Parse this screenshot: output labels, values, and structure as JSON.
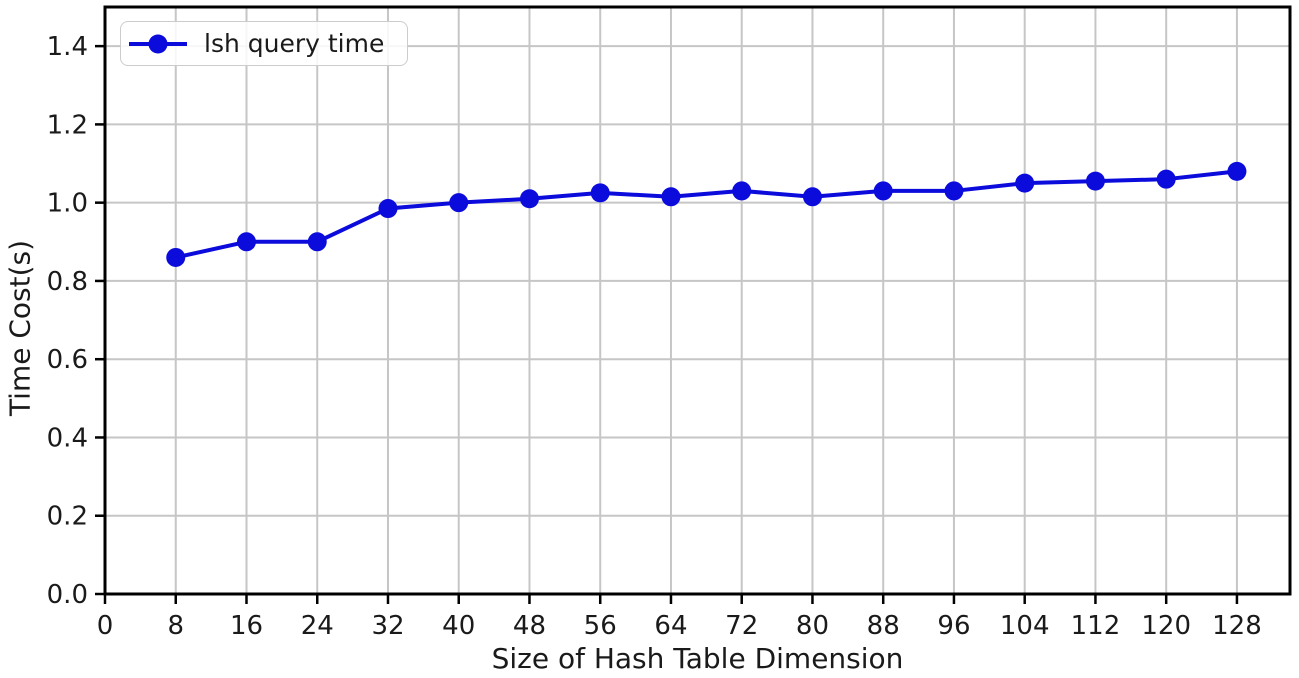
{
  "chart_data": {
    "type": "line",
    "title": "",
    "xlabel": "Size of Hash Table Dimension",
    "ylabel": "Time Cost(s)",
    "x": [
      8,
      16,
      24,
      32,
      40,
      48,
      56,
      64,
      72,
      80,
      88,
      96,
      104,
      112,
      120,
      128
    ],
    "series": [
      {
        "name": "lsh query time",
        "values": [
          0.86,
          0.9,
          0.9,
          0.985,
          1.0,
          1.01,
          1.025,
          1.015,
          1.03,
          1.015,
          1.03,
          1.03,
          1.05,
          1.055,
          1.06,
          1.08
        ],
        "color": "#0b0bdc",
        "marker": "circle"
      }
    ],
    "xlim": [
      0,
      134
    ],
    "ylim": [
      0,
      1.5
    ],
    "xticks": [
      0,
      8,
      16,
      24,
      32,
      40,
      48,
      56,
      64,
      72,
      80,
      88,
      96,
      104,
      112,
      120,
      128
    ],
    "yticks": [
      0.0,
      0.2,
      0.4,
      0.6,
      0.8,
      1.0,
      1.2,
      1.4
    ],
    "ytick_decimals": 1,
    "grid": true,
    "grid_color": "#c6c6c6",
    "spine_color": "#000000",
    "tick_label_color": "#1a1a1a",
    "background": "#ffffff",
    "legend_position": "upper-left"
  }
}
